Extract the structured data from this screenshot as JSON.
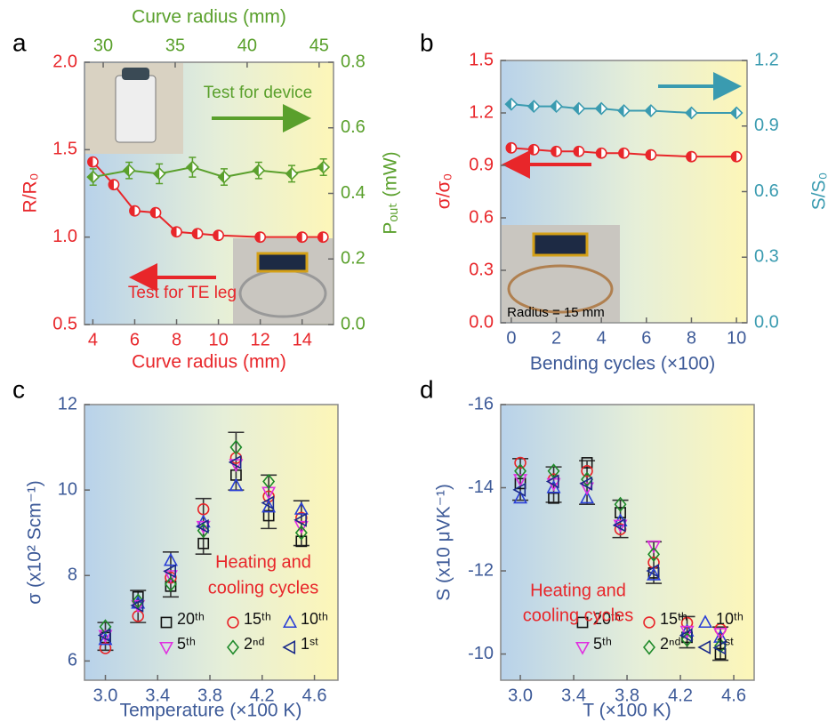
{
  "chart_data": [
    {
      "type": "line",
      "panel_label": "a",
      "xlabel": "Curve radius (mm)",
      "x2label": "Curve radius (mm)",
      "ylabel": "R/R₀",
      "y2label": "Pₒᵤₜ (mW)",
      "xlim": [
        3.6,
        15.5
      ],
      "xticks": [
        4,
        6,
        8,
        10,
        12,
        14
      ],
      "x2lim": [
        28.7,
        46
      ],
      "x2ticks": [
        30,
        35,
        40,
        45
      ],
      "ylim": [
        0.5,
        2.0
      ],
      "yticks": [
        0.5,
        {
          "value": 1,
          "label": "1.0"
        },
        1.5,
        {
          "value": 2,
          "label": "2.0"
        }
      ],
      "y2lim": [
        0,
        0.8
      ],
      "y2ticks": [
        {
          "value": 0,
          "label": "0.0"
        },
        0.2,
        0.4,
        0.6,
        0.8
      ],
      "axis_colors": {
        "x": "#e8262a",
        "y": "#e8262a",
        "x2": "#5aa02c",
        "y2": "#5aa02c"
      },
      "series": [
        {
          "color": "#e8262a",
          "marker": "circle-half",
          "x": [
            4,
            5,
            6,
            7,
            8,
            9,
            10,
            12,
            14,
            15
          ],
          "values": [
            1.43,
            1.3,
            1.15,
            1.14,
            1.03,
            1.02,
            1.01,
            1.0,
            1.0,
            1.0
          ],
          "errors": [
            0.01,
            0.02,
            0.01,
            0.015,
            0.01,
            0.01,
            0.01,
            0.01,
            0.01,
            0.01
          ]
        },
        {
          "color": "#5aa02c",
          "marker": "diamond-half",
          "axis": "y2",
          "xaxis": "x2",
          "x": [
            29.3,
            31.8,
            33.9,
            36.2,
            38.4,
            40.8,
            43.1,
            45.3
          ],
          "values": [
            0.45,
            0.47,
            0.46,
            0.48,
            0.45,
            0.47,
            0.46,
            0.48
          ],
          "errors": [
            0.025,
            0.025,
            0.03,
            0.03,
            0.025,
            0.025,
            0.025,
            0.025
          ]
        }
      ],
      "annotations": [
        {
          "text": "Test for device",
          "color": "#5aa02c"
        },
        {
          "text": "Test for TE leg",
          "color": "#e8262a"
        }
      ]
    },
    {
      "type": "line",
      "panel_label": "b",
      "xlabel": "Bending cycles (×100)",
      "ylabel": "σ/σ₀",
      "y2label": "S/S₀",
      "xlim": [
        -0.47,
        10.47
      ],
      "xticks": [
        0,
        2,
        4,
        6,
        8,
        10
      ],
      "ylim": [
        0,
        1.5
      ],
      "yticks": [
        {
          "value": 0,
          "label": "0.0"
        },
        0.3,
        0.6,
        0.9,
        1.2,
        1.5
      ],
      "y2lim": [
        0,
        1.2
      ],
      "y2ticks": [
        {
          "value": 0,
          "label": "0.0"
        },
        0.3,
        0.6,
        0.9,
        1.2
      ],
      "axis_colors": {
        "x": "#3d5a98",
        "y": "#e8262a",
        "y2": "#3a9bb0"
      },
      "series": [
        {
          "color": "#e8262a",
          "marker": "circle-half",
          "x": [
            0,
            1,
            2,
            3,
            4,
            5,
            6.2,
            8,
            10
          ],
          "values": [
            1.0,
            0.99,
            0.98,
            0.98,
            0.97,
            0.97,
            0.96,
            0.95,
            0.95
          ]
        },
        {
          "color": "#3a9bb0",
          "marker": "diamond-half",
          "axis": "y2",
          "x": [
            0,
            1,
            2,
            3,
            4,
            5,
            6.2,
            8,
            10
          ],
          "values": [
            1.0,
            0.99,
            0.99,
            0.98,
            0.98,
            0.97,
            0.97,
            0.96,
            0.96
          ]
        }
      ],
      "annotations": [
        {
          "text": "Radius = 15 mm",
          "color": "#000000"
        }
      ]
    },
    {
      "type": "scatter",
      "panel_label": "c",
      "xlabel": "Temperature (×100 K)",
      "ylabel": "σ (x10² Scm⁻¹)",
      "x": [
        3.0,
        3.25,
        3.5,
        3.75,
        4.0,
        4.25,
        4.5
      ],
      "xlim": [
        2.84,
        4.78
      ],
      "xticks": [
        {
          "value": 3,
          "label": "3.0"
        },
        3.4,
        3.8,
        4.2,
        4.6
      ],
      "ylim": [
        5.55,
        12
      ],
      "yticks": [
        6,
        8,
        10,
        12
      ],
      "axis_colors": {
        "x": "#3d5a98",
        "y": "#3d5a98"
      },
      "legend": "lower right",
      "series": [
        {
          "name": "20ᵗʰ",
          "color": "#111111",
          "marker": "square",
          "values": [
            6.55,
            7.5,
            7.75,
            8.75,
            10.35,
            9.4,
            8.8
          ]
        },
        {
          "name": "15ᵗʰ",
          "color": "#e8262a",
          "marker": "circle",
          "values": [
            6.3,
            7.05,
            7.95,
            9.55,
            10.75,
            9.85,
            9.35
          ]
        },
        {
          "name": "10ᵗʰ",
          "color": "#2a3fd6",
          "marker": "triangle-up",
          "values": [
            6.5,
            7.35,
            8.35,
            9.25,
            10.1,
            9.6,
            9.55
          ]
        },
        {
          "name": "5ᵗʰ",
          "color": "#e030e0",
          "marker": "triangle-down",
          "values": [
            6.6,
            7.3,
            8.0,
            9.15,
            10.6,
            9.95,
            9.15
          ]
        },
        {
          "name": "2ⁿᵈ",
          "color": "#1f8a2a",
          "marker": "diamond",
          "values": [
            6.8,
            7.4,
            7.8,
            9.05,
            11.0,
            10.2,
            9.0
          ]
        },
        {
          "name": "1ˢᵗ",
          "color": "#1a2a8a",
          "marker": "triangle-left",
          "values": [
            6.6,
            7.3,
            8.1,
            9.15,
            10.65,
            9.7,
            9.3
          ]
        }
      ],
      "error_low": [
        6.25,
        6.9,
        7.5,
        8.5,
        10.0,
        9.1,
        8.7
      ],
      "error_high": [
        6.9,
        7.65,
        8.55,
        9.8,
        11.35,
        10.35,
        9.75
      ],
      "annotations": [
        {
          "text": "Heating and",
          "color": "#e8262a"
        },
        {
          "text": "cooling cycles",
          "color": "#e8262a"
        }
      ]
    },
    {
      "type": "scatter",
      "panel_label": "d",
      "xlabel": "T (×100 K)",
      "ylabel": "S (x10 μVK⁻¹)",
      "x": [
        3.0,
        3.25,
        3.5,
        3.75,
        4.0,
        4.25,
        4.5
      ],
      "xlim": [
        2.853,
        4.753
      ],
      "xticks": [
        {
          "value": 3,
          "label": "3.0"
        },
        3.4,
        3.8,
        4.2,
        4.6
      ],
      "ylim": [
        -9.37,
        -16
      ],
      "yticks": [
        -16,
        -14,
        -12,
        -10
      ],
      "axis_colors": {
        "x": "#3d5a98",
        "y": "#3d5a98"
      },
      "legend": "lower right",
      "series": [
        {
          "name": "20ᵗʰ",
          "color": "#111111",
          "marker": "square",
          "values": [
            -14.1,
            -13.75,
            -14.6,
            -13.4,
            -11.95,
            -10.4,
            -10.0
          ]
        },
        {
          "name": "15ᵗʰ",
          "color": "#e8262a",
          "marker": "circle",
          "values": [
            -14.6,
            -14.2,
            -14.4,
            -13.0,
            -12.2,
            -10.75,
            -10.6
          ]
        },
        {
          "name": "10ᵗʰ",
          "color": "#2a3fd6",
          "marker": "triangle-up",
          "values": [
            -13.75,
            -14.0,
            -13.75,
            -13.2,
            -11.9,
            -10.55,
            -10.4
          ]
        },
        {
          "name": "5ᵗʰ",
          "color": "#e030e0",
          "marker": "triangle-down",
          "values": [
            -14.2,
            -14.1,
            -14.0,
            -13.1,
            -12.6,
            -10.55,
            -10.5
          ]
        },
        {
          "name": "2ⁿᵈ",
          "color": "#1f8a2a",
          "marker": "diamond",
          "values": [
            -14.4,
            -14.4,
            -14.2,
            -13.6,
            -12.4,
            -10.35,
            -10.2
          ]
        },
        {
          "name": "1ˢᵗ",
          "color": "#1a2a8a",
          "marker": "triangle-left",
          "values": [
            -13.95,
            -14.15,
            -14.1,
            -13.1,
            -12.0,
            -10.45,
            -10.15
          ]
        }
      ],
      "error_low": [
        -13.7,
        -13.65,
        -13.6,
        -12.8,
        -11.7,
        -10.15,
        -9.85
      ],
      "error_high": [
        -14.7,
        -14.5,
        -14.65,
        -13.7,
        -12.7,
        -10.9,
        -10.65
      ],
      "annotations": [
        {
          "text": "Heating and",
          "color": "#e8262a"
        },
        {
          "text": "cooling cycles",
          "color": "#e8262a"
        }
      ]
    }
  ]
}
